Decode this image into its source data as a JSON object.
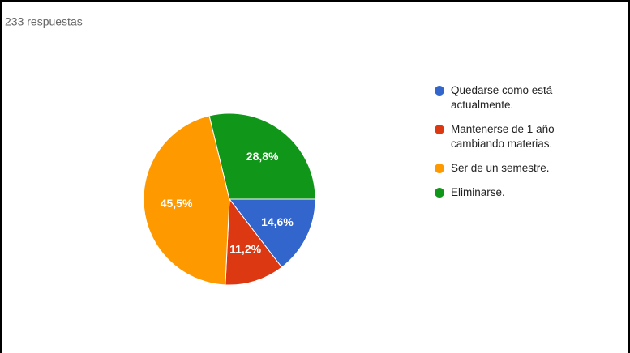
{
  "chart_data": {
    "type": "pie",
    "subtitle": "233 respuestas",
    "categories": [
      "Quedarse como está actualmente.",
      "Mantenerse de 1 año cambiando materias.",
      "Ser de un semestre.",
      "Eliminarse."
    ],
    "values": [
      14.6,
      11.2,
      45.5,
      28.8
    ],
    "value_labels": [
      "14,6%",
      "11,2%",
      "45,5%",
      "28,8%"
    ],
    "colors": [
      "#3366cc",
      "#dc3912",
      "#ff9900",
      "#109618"
    ]
  }
}
